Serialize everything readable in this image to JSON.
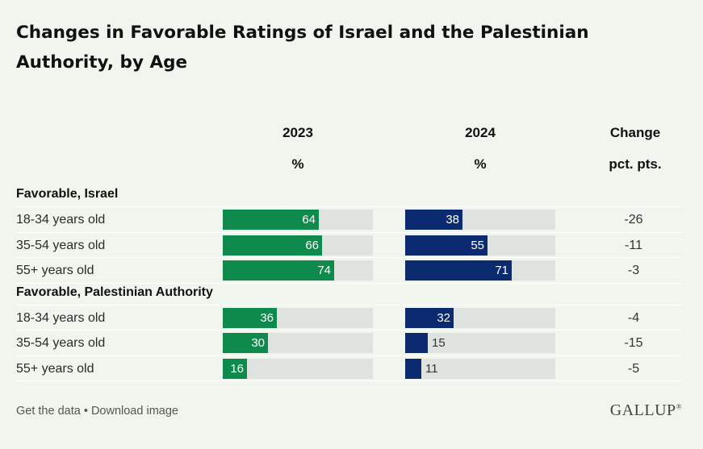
{
  "title": "Changes in Favorable Ratings of Israel and the Palestinian Authority, by Age",
  "columns": {
    "y2023": "2023",
    "y2023_unit": "%",
    "y2024": "2024",
    "y2024_unit": "%",
    "change": "Change",
    "change_unit": "pct. pts."
  },
  "footer": {
    "get_data": "Get the data",
    "separator": "•",
    "download": "Download image",
    "logo": "GALLUP",
    "logo_mark": "®"
  },
  "colors": {
    "bar_2023": "#0d8a4c",
    "bar_2024": "#0b2a6f",
    "track": "#dfe3df",
    "background": "#f0f5ee"
  },
  "chart_data": {
    "type": "bar",
    "title": "Changes in Favorable Ratings of Israel and the Palestinian Authority, by Age",
    "ylim": [
      0,
      100
    ],
    "groups": [
      {
        "label": "Favorable, Israel",
        "rows": [
          {
            "category": "18-34 years old",
            "v2023": 64,
            "v2024": 38,
            "change": "-26"
          },
          {
            "category": "35-54 years old",
            "v2023": 66,
            "v2024": 55,
            "change": "-11"
          },
          {
            "category": "55+ years old",
            "v2023": 74,
            "v2024": 71,
            "change": "-3"
          }
        ]
      },
      {
        "label": "Favorable, Palestinian Authority",
        "rows": [
          {
            "category": "18-34 years old",
            "v2023": 36,
            "v2024": 32,
            "change": "-4"
          },
          {
            "category": "35-54 years old",
            "v2023": 30,
            "v2024": 15,
            "change": "-15"
          },
          {
            "category": "55+ years old",
            "v2023": 16,
            "v2024": 11,
            "change": "-5"
          }
        ]
      }
    ]
  }
}
